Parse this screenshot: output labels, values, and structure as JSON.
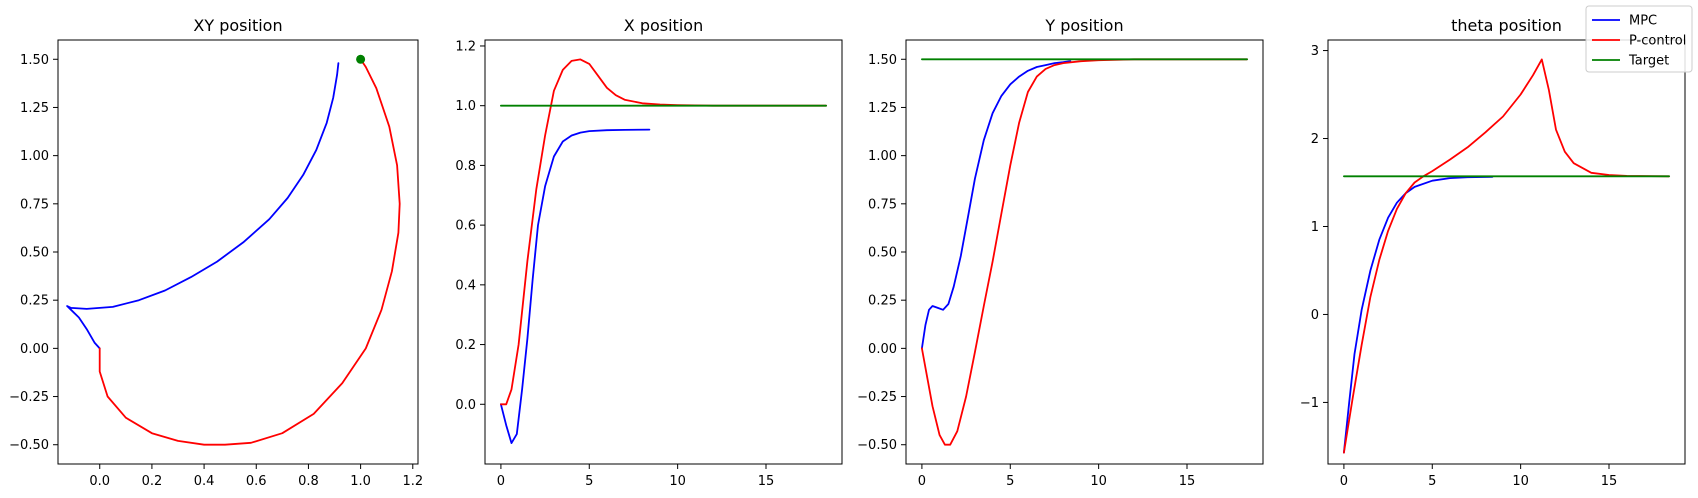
{
  "chart_data": [
    {
      "type": "line",
      "title": "XY position",
      "xlabel": "",
      "ylabel": "",
      "xlim": [
        -0.16,
        1.22
      ],
      "ylim": [
        -0.6,
        1.6
      ],
      "xticks": [
        0.0,
        0.2,
        0.4,
        0.6,
        0.8,
        1.0,
        1.2
      ],
      "xtick_labels": [
        "0.0",
        "0.2",
        "0.4",
        "0.6",
        "0.8",
        "1.0",
        "1.2"
      ],
      "yticks": [
        -0.5,
        -0.25,
        0.0,
        0.25,
        0.5,
        0.75,
        1.0,
        1.25,
        1.5
      ],
      "ytick_labels": [
        "−0.50",
        "−0.25",
        "0.00",
        "0.25",
        "0.50",
        "0.75",
        "1.00",
        "1.25",
        "1.50"
      ],
      "series": [
        {
          "name": "MPC",
          "color": "#0000ff",
          "x": [
            0.0,
            -0.02,
            -0.05,
            -0.08,
            -0.11,
            -0.125,
            -0.11,
            -0.05,
            0.05,
            0.15,
            0.25,
            0.35,
            0.45,
            0.55,
            0.65,
            0.72,
            0.78,
            0.83,
            0.87,
            0.895,
            0.91,
            0.915
          ],
          "y": [
            0.0,
            0.03,
            0.1,
            0.16,
            0.2,
            0.22,
            0.21,
            0.205,
            0.215,
            0.25,
            0.3,
            0.37,
            0.45,
            0.55,
            0.67,
            0.78,
            0.9,
            1.03,
            1.17,
            1.3,
            1.42,
            1.48
          ]
        },
        {
          "name": "P-control",
          "color": "#ff0000",
          "x": [
            0.0,
            0.0,
            0.03,
            0.1,
            0.2,
            0.3,
            0.4,
            0.48,
            0.58,
            0.7,
            0.82,
            0.93,
            1.02,
            1.08,
            1.12,
            1.145,
            1.15,
            1.14,
            1.11,
            1.06,
            1.02,
            1.0
          ],
          "y": [
            0.0,
            -0.12,
            -0.25,
            -0.36,
            -0.44,
            -0.48,
            -0.5,
            -0.5,
            -0.49,
            -0.44,
            -0.34,
            -0.18,
            0.0,
            0.2,
            0.4,
            0.6,
            0.75,
            0.95,
            1.15,
            1.35,
            1.46,
            1.5
          ]
        }
      ],
      "markers": [
        {
          "name": "Target",
          "x": 1.0,
          "y": 1.5,
          "color": "#008000"
        }
      ]
    },
    {
      "type": "line",
      "title": "X position",
      "xlabel": "",
      "ylabel": "",
      "xlim": [
        -0.9,
        19.3
      ],
      "ylim": [
        -0.2,
        1.22
      ],
      "xticks": [
        0,
        5,
        10,
        15
      ],
      "xtick_labels": [
        "0",
        "5",
        "10",
        "15"
      ],
      "yticks": [
        0.0,
        0.2,
        0.4,
        0.6,
        0.8,
        1.0,
        1.2
      ],
      "ytick_labels": [
        "0.0",
        "0.2",
        "0.4",
        "0.6",
        "0.8",
        "1.0",
        "1.2"
      ],
      "series": [
        {
          "name": "MPC",
          "color": "#0000ff",
          "x": [
            0,
            0.3,
            0.6,
            0.9,
            1.2,
            1.5,
            1.8,
            2.1,
            2.5,
            3.0,
            3.5,
            4.0,
            4.5,
            5.0,
            6.0,
            7.0,
            8.4
          ],
          "y": [
            0.0,
            -0.07,
            -0.13,
            -0.1,
            0.05,
            0.22,
            0.42,
            0.6,
            0.73,
            0.83,
            0.88,
            0.9,
            0.91,
            0.915,
            0.918,
            0.919,
            0.92
          ]
        },
        {
          "name": "P-control",
          "color": "#ff0000",
          "x": [
            0,
            0.3,
            0.6,
            1.0,
            1.5,
            2.0,
            2.5,
            3.0,
            3.5,
            4.0,
            4.5,
            5.0,
            5.5,
            6.0,
            6.5,
            7.0,
            8.0,
            9.0,
            10.0,
            12.0,
            15.0,
            18.4
          ],
          "y": [
            0.0,
            0.0,
            0.05,
            0.2,
            0.48,
            0.72,
            0.9,
            1.05,
            1.12,
            1.15,
            1.155,
            1.14,
            1.1,
            1.06,
            1.035,
            1.02,
            1.008,
            1.004,
            1.002,
            1.0,
            1.0,
            1.0
          ]
        },
        {
          "name": "Target",
          "color": "#008000",
          "x": [
            0,
            18.4
          ],
          "y": [
            1.0,
            1.0
          ]
        }
      ]
    },
    {
      "type": "line",
      "title": "Y position",
      "xlabel": "",
      "ylabel": "",
      "xlim": [
        -0.9,
        19.3
      ],
      "ylim": [
        -0.6,
        1.6
      ],
      "xticks": [
        0,
        5,
        10,
        15
      ],
      "xtick_labels": [
        "0",
        "5",
        "10",
        "15"
      ],
      "yticks": [
        -0.5,
        -0.25,
        0.0,
        0.25,
        0.5,
        0.75,
        1.0,
        1.25,
        1.5
      ],
      "ytick_labels": [
        "−0.50",
        "−0.25",
        "0.00",
        "0.25",
        "0.50",
        "0.75",
        "1.00",
        "1.25",
        "1.50"
      ],
      "series": [
        {
          "name": "MPC",
          "color": "#0000ff",
          "x": [
            0,
            0.2,
            0.4,
            0.6,
            0.9,
            1.2,
            1.5,
            1.8,
            2.2,
            2.6,
            3.0,
            3.5,
            4.0,
            4.5,
            5.0,
            5.5,
            6.0,
            6.5,
            7.0,
            7.5,
            8.0,
            8.4
          ],
          "y": [
            0.0,
            0.12,
            0.2,
            0.22,
            0.21,
            0.2,
            0.23,
            0.32,
            0.48,
            0.68,
            0.88,
            1.08,
            1.22,
            1.31,
            1.37,
            1.41,
            1.44,
            1.46,
            1.47,
            1.48,
            1.485,
            1.49
          ]
        },
        {
          "name": "P-control",
          "color": "#ff0000",
          "x": [
            0,
            0.3,
            0.6,
            1.0,
            1.3,
            1.6,
            2.0,
            2.5,
            3.0,
            3.5,
            4.0,
            4.5,
            5.0,
            5.5,
            6.0,
            6.5,
            7.0,
            7.5,
            8.0,
            9.0,
            10.0,
            12.0,
            15.0,
            18.4
          ],
          "y": [
            0.0,
            -0.15,
            -0.3,
            -0.45,
            -0.5,
            -0.5,
            -0.43,
            -0.25,
            -0.02,
            0.22,
            0.45,
            0.7,
            0.95,
            1.17,
            1.33,
            1.41,
            1.45,
            1.47,
            1.48,
            1.49,
            1.495,
            1.5,
            1.5,
            1.5
          ]
        },
        {
          "name": "Target",
          "color": "#008000",
          "x": [
            0,
            18.4
          ],
          "y": [
            1.5,
            1.5
          ]
        }
      ]
    },
    {
      "type": "line",
      "title": "theta position",
      "xlabel": "",
      "ylabel": "",
      "xlim": [
        -0.9,
        19.3
      ],
      "ylim": [
        -1.7,
        3.12
      ],
      "xticks": [
        0,
        5,
        10,
        15
      ],
      "xtick_labels": [
        "0",
        "5",
        "10",
        "15"
      ],
      "yticks": [
        -1,
        0,
        1,
        2,
        3
      ],
      "ytick_labels": [
        "−1",
        "0",
        "1",
        "2",
        "3"
      ],
      "series": [
        {
          "name": "MPC",
          "color": "#0000ff",
          "x": [
            0,
            0.3,
            0.6,
            1.0,
            1.5,
            2.0,
            2.5,
            3.0,
            3.5,
            4.0,
            5.0,
            6.0,
            7.0,
            8.4
          ],
          "y": [
            -1.57,
            -1.0,
            -0.45,
            0.05,
            0.5,
            0.85,
            1.1,
            1.27,
            1.38,
            1.45,
            1.52,
            1.55,
            1.56,
            1.565
          ]
        },
        {
          "name": "P-control",
          "color": "#ff0000",
          "x": [
            0,
            0.5,
            1.0,
            1.5,
            2.0,
            2.5,
            3.0,
            3.5,
            4.0,
            4.5,
            5.0,
            6.0,
            7.0,
            8.0,
            9.0,
            10.0,
            10.7,
            11.2,
            11.6,
            12.0,
            12.5,
            13.0,
            14.0,
            15.0,
            16.0,
            18.4
          ],
          "y": [
            -1.57,
            -0.95,
            -0.35,
            0.2,
            0.62,
            0.95,
            1.2,
            1.38,
            1.5,
            1.57,
            1.63,
            1.76,
            1.9,
            2.07,
            2.25,
            2.5,
            2.72,
            2.9,
            2.55,
            2.1,
            1.85,
            1.72,
            1.61,
            1.585,
            1.575,
            1.57
          ]
        },
        {
          "name": "Target",
          "color": "#008000",
          "x": [
            0,
            18.4
          ],
          "y": [
            1.57,
            1.57
          ]
        }
      ]
    }
  ],
  "legend": {
    "placement": "top-right",
    "entries": [
      {
        "label": "MPC",
        "color": "#0000ff"
      },
      {
        "label": "P-control",
        "color": "#ff0000"
      },
      {
        "label": "Target",
        "color": "#008000"
      }
    ]
  }
}
